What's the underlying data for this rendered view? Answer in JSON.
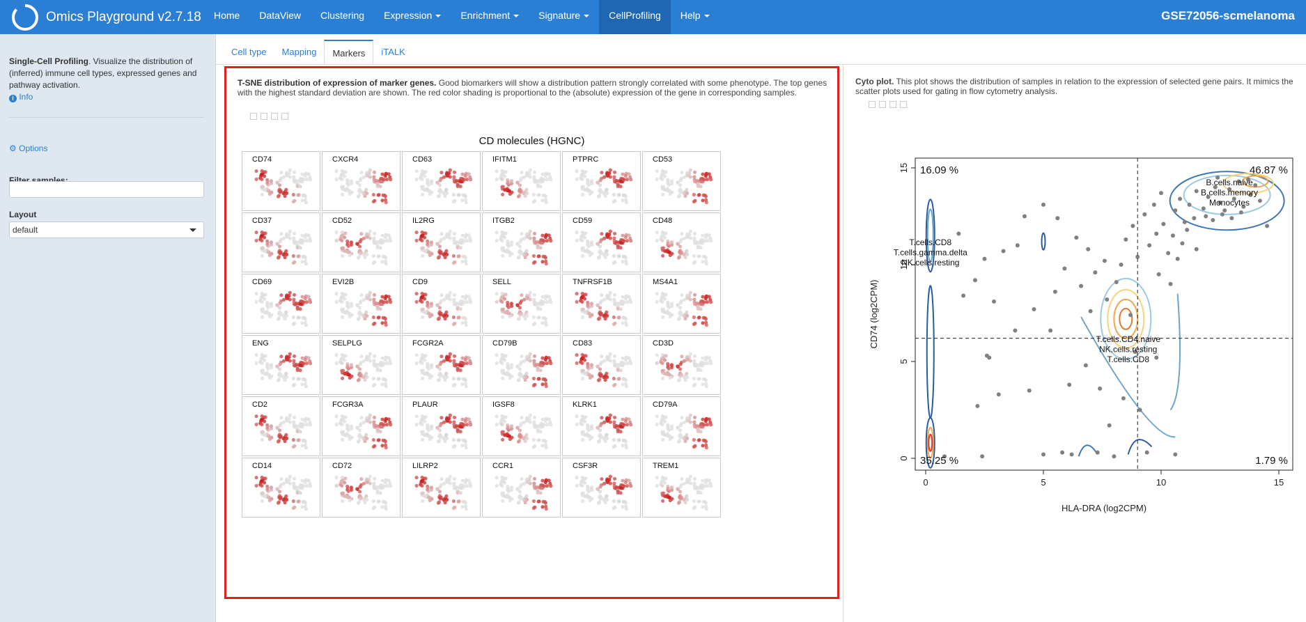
{
  "navbar": {
    "brand": "Omics Playground v2.7.18",
    "items": [
      {
        "label": "Home",
        "dropdown": false,
        "active": false
      },
      {
        "label": "DataView",
        "dropdown": false,
        "active": false
      },
      {
        "label": "Clustering",
        "dropdown": false,
        "active": false
      },
      {
        "label": "Expression",
        "dropdown": true,
        "active": false
      },
      {
        "label": "Enrichment",
        "dropdown": true,
        "active": false
      },
      {
        "label": "Signature",
        "dropdown": true,
        "active": false
      },
      {
        "label": "CellProfiling",
        "dropdown": false,
        "active": true
      },
      {
        "label": "Help",
        "dropdown": true,
        "active": false
      }
    ],
    "dataset": "GSE72056-scmelanoma",
    "color": "#2a7fd4"
  },
  "sidebar": {
    "title": "Single-Cell Profiling",
    "description": ". Visualize the distribution of (inferred) immune cell types, expressed genes and pathway activation.",
    "info_label": "Info",
    "options_label": "Options",
    "filter_label": "Filter samples:",
    "filter_value": "",
    "layout_label": "Layout",
    "layout_value": "default"
  },
  "tabs": [
    {
      "label": "Cell type",
      "active": false
    },
    {
      "label": "Mapping",
      "active": false
    },
    {
      "label": "Markers",
      "active": true
    },
    {
      "label": "iTALK",
      "active": false
    }
  ],
  "markers_panel": {
    "title": "T-SNE distribution of expression of marker genes.",
    "description": " Good biomarkers will show a distribution pattern strongly correlated with some phenotype. The top genes with the highest standard deviation are shown. The red color shading is proportional to the (absolute) expression of the gene in corresponding samples.",
    "grid_title": "CD molecules (HGNC)",
    "genes": [
      "CD74",
      "CXCR4",
      "CD63",
      "IFITM1",
      "PTPRC",
      "CD53",
      "CD37",
      "CD52",
      "IL2RG",
      "ITGB2",
      "CD59",
      "CD48",
      "CD69",
      "EVI2B",
      "CD9",
      "SELL",
      "TNFRSF1B",
      "MS4A1",
      "ENG",
      "SELPLG",
      "FCGR2A",
      "CD79B",
      "CD83",
      "CD3D",
      "CD2",
      "FCGR3A",
      "PLAUR",
      "IGSF8",
      "KLRK1",
      "CD79A",
      "CD14",
      "CD72",
      "LILRP2",
      "CCR1",
      "CSF3R",
      "TREM1"
    ],
    "highlight_color": "#e02020"
  },
  "cyto_panel": {
    "title": "Cyto plot.",
    "description": " This plot shows the distribution of samples in relation to the expression of selected gene pairs. It mimics the scatter plots used for gating in flow cytometry analysis."
  },
  "chart_data": {
    "type": "scatter",
    "xlabel": "HLA-DRA (log2CPM)",
    "ylabel": "CD74 (log2CPM)",
    "xlim": [
      0,
      15
    ],
    "ylim": [
      0,
      15
    ],
    "xticks": [
      0,
      5,
      10,
      15
    ],
    "yticks": [
      0,
      5,
      10,
      15
    ],
    "threshold_x": 9,
    "threshold_y": 6.2,
    "quadrant_percent": {
      "top_left": "16.09 %",
      "top_right": "46.87 %",
      "bottom_left": "35.25 %",
      "bottom_right": "1.79 %"
    },
    "annotations": [
      {
        "lines": [
          "B.cells.naive",
          "B.cells.memory",
          "Monocytes"
        ],
        "x": 12.9,
        "y": 14.1
      },
      {
        "lines": [
          "T.cells.CD8",
          "T.cells.gamma.delta",
          "NK.cells.resting"
        ],
        "x": 0.2,
        "y": 11.0
      },
      {
        "lines": [
          "T.cells.CD4.naive",
          "NK.cells.resting",
          "T.cells.CD8"
        ],
        "x": 8.6,
        "y": 6.0
      }
    ],
    "points": [
      [
        11.2,
        13.1
      ],
      [
        11.5,
        13.8
      ],
      [
        11.8,
        12.9
      ],
      [
        12.0,
        13.5
      ],
      [
        12.3,
        14.0
      ],
      [
        12.5,
        13.2
      ],
      [
        12.7,
        12.8
      ],
      [
        12.9,
        13.9
      ],
      [
        13.1,
        13.4
      ],
      [
        13.3,
        14.3
      ],
      [
        13.5,
        13.0
      ],
      [
        13.8,
        13.6
      ],
      [
        14.0,
        14.1
      ],
      [
        14.2,
        13.3
      ],
      [
        11.9,
        12.5
      ],
      [
        12.2,
        12.3
      ],
      [
        12.6,
        12.6
      ],
      [
        13.0,
        12.4
      ],
      [
        13.4,
        12.7
      ],
      [
        11.4,
        12.4
      ],
      [
        10.8,
        13.4
      ],
      [
        10.6,
        12.8
      ],
      [
        11.0,
        12.2
      ],
      [
        12.4,
        14.5
      ],
      [
        13.7,
        14.4
      ],
      [
        14.5,
        12.0
      ],
      [
        10.5,
        11.5
      ],
      [
        10.9,
        11.1
      ],
      [
        10.3,
        10.6
      ],
      [
        11.1,
        11.8
      ],
      [
        9.5,
        11.0
      ],
      [
        9.8,
        11.6
      ],
      [
        10.1,
        12.1
      ],
      [
        9.3,
        12.6
      ],
      [
        9.7,
        13.1
      ],
      [
        10.0,
        13.7
      ],
      [
        8.8,
        12.0
      ],
      [
        8.5,
        11.3
      ],
      [
        9.0,
        10.4
      ],
      [
        8.3,
        10.0
      ],
      [
        9.9,
        9.5
      ],
      [
        10.4,
        9.0
      ],
      [
        10.7,
        10.3
      ],
      [
        11.5,
        10.8
      ],
      [
        8.1,
        9.1
      ],
      [
        7.6,
        10.2
      ],
      [
        7.2,
        9.6
      ],
      [
        6.9,
        10.8
      ],
      [
        6.4,
        11.4
      ],
      [
        5.6,
        12.4
      ],
      [
        5.0,
        13.1
      ],
      [
        4.2,
        12.5
      ],
      [
        3.9,
        11.0
      ],
      [
        3.3,
        10.7
      ],
      [
        2.5,
        10.3
      ],
      [
        1.4,
        11.6
      ],
      [
        2.1,
        9.2
      ],
      [
        1.6,
        8.4
      ],
      [
        2.9,
        8.1
      ],
      [
        4.6,
        7.7
      ],
      [
        5.5,
        8.6
      ],
      [
        5.9,
        9.8
      ],
      [
        6.6,
        8.9
      ],
      [
        7.0,
        7.6
      ],
      [
        7.7,
        8.2
      ],
      [
        8.7,
        7.4
      ],
      [
        5.3,
        6.6
      ],
      [
        3.8,
        6.6
      ],
      [
        2.6,
        5.3
      ],
      [
        2.7,
        5.2
      ],
      [
        3.1,
        3.3
      ],
      [
        2.2,
        2.7
      ],
      [
        4.4,
        3.5
      ],
      [
        6.1,
        3.8
      ],
      [
        7.4,
        3.6
      ],
      [
        0.8,
        0.1
      ],
      [
        2.4,
        0.1
      ],
      [
        5.0,
        0.2
      ],
      [
        5.8,
        0.3
      ],
      [
        6.2,
        0.2
      ],
      [
        7.3,
        0.3
      ],
      [
        8.0,
        0.1
      ],
      [
        9.4,
        0.3
      ],
      [
        10.6,
        0.2
      ],
      [
        6.8,
        4.8
      ],
      [
        8.9,
        5.5
      ],
      [
        9.8,
        5.2
      ],
      [
        8.4,
        3.1
      ],
      [
        9.1,
        2.5
      ],
      [
        7.8,
        1.7
      ]
    ]
  }
}
